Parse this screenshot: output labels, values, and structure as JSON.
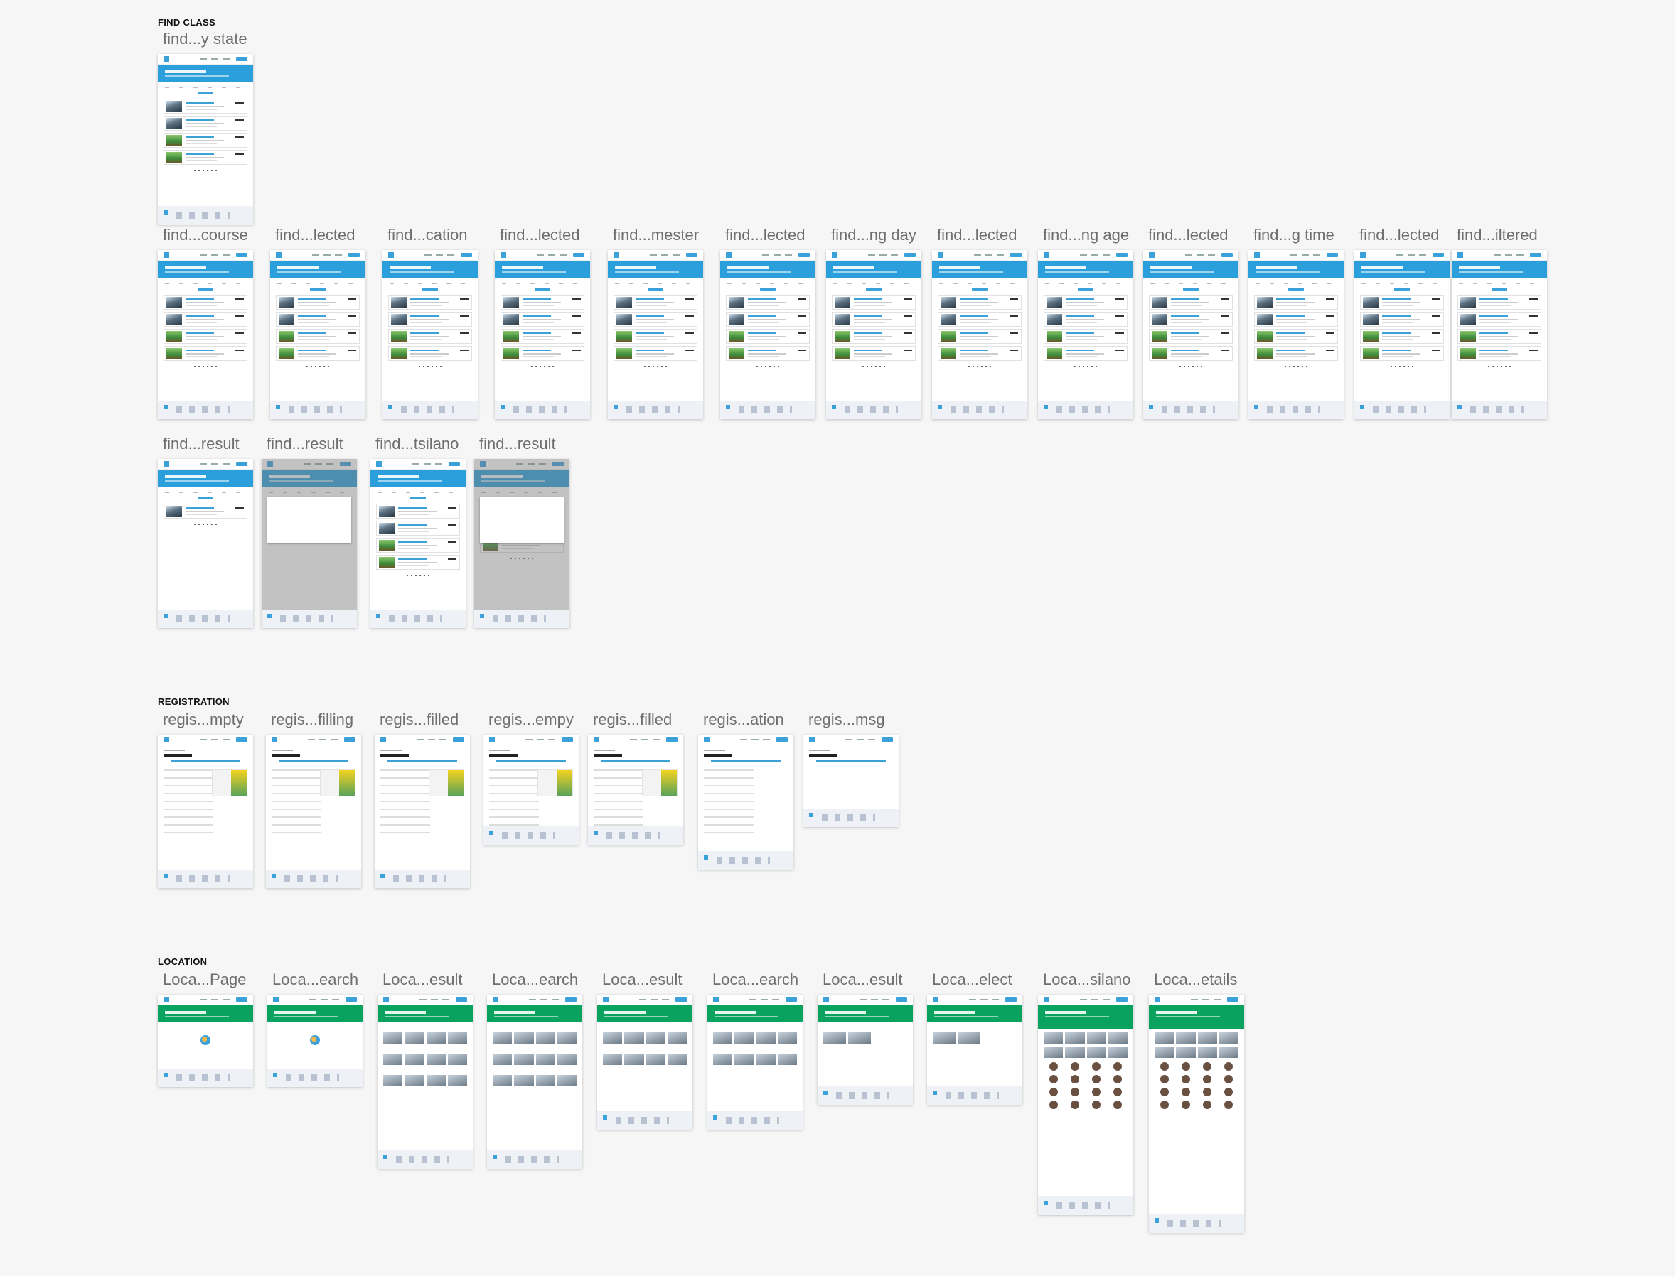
{
  "sections": [
    {
      "title": "FIND CLASS",
      "rows": [
        {
          "boards": [
            {
              "label": "find...y state",
              "type": "course-list",
              "cards": 4
            }
          ]
        },
        {
          "boards": [
            {
              "label": "find...course",
              "type": "course-list",
              "cards": 4
            },
            {
              "label": "find...lected",
              "type": "course-list",
              "cards": 4
            },
            {
              "label": "find...cation",
              "type": "course-list",
              "cards": 4
            },
            {
              "label": "find...lected",
              "type": "course-list",
              "cards": 4
            },
            {
              "label": "find...mester",
              "type": "course-list",
              "cards": 4
            },
            {
              "label": "find...lected",
              "type": "course-list",
              "cards": 4
            },
            {
              "label": "find...ng day",
              "type": "course-list",
              "cards": 4
            },
            {
              "label": "find...lected",
              "type": "course-list",
              "cards": 4
            },
            {
              "label": "find...ng age",
              "type": "course-list",
              "cards": 4
            },
            {
              "label": "find...lected",
              "type": "course-list",
              "cards": 4
            },
            {
              "label": "find...g time",
              "type": "course-list",
              "cards": 4
            },
            {
              "label": "find...lected",
              "type": "course-list",
              "cards": 4
            },
            {
              "label": "find...iltered",
              "type": "course-list",
              "cards": 4
            }
          ]
        },
        {
          "boards": [
            {
              "label": "find...result",
              "type": "course-list",
              "cards": 1
            },
            {
              "label": "find...result",
              "type": "course-modal",
              "cards": 0
            },
            {
              "label": "find...tsilano",
              "type": "course-list",
              "cards": 4
            },
            {
              "label": "find...result",
              "type": "course-modal",
              "cards": 3
            }
          ]
        }
      ]
    },
    {
      "title": "REGISTRATION",
      "rows": [
        {
          "boards": [
            {
              "label": "regis...mpty",
              "type": "registration"
            },
            {
              "label": "regis...filling",
              "type": "registration"
            },
            {
              "label": "regis...filled",
              "type": "registration"
            },
            {
              "label": "regis...empy",
              "type": "registration-short"
            },
            {
              "label": "regis...filled",
              "type": "registration-short"
            },
            {
              "label": "regis...ation",
              "type": "registration-mid"
            },
            {
              "label": "regis...msg",
              "type": "registration-done"
            }
          ]
        }
      ]
    },
    {
      "title": "LOCATION",
      "rows": [
        {
          "boards": [
            {
              "label": "Loca...Page",
              "type": "location-empty"
            },
            {
              "label": "Loca...earch",
              "type": "location-empty"
            },
            {
              "label": "Loca...esult",
              "type": "location-results"
            },
            {
              "label": "Loca...earch",
              "type": "location-results"
            },
            {
              "label": "Loca...esult",
              "type": "location-results-short"
            },
            {
              "label": "Loca...earch",
              "type": "location-results-short"
            },
            {
              "label": "Loca...esult",
              "type": "location-few"
            },
            {
              "label": "Loca...elect",
              "type": "location-few"
            },
            {
              "label": "Loca...silano",
              "type": "location-detail"
            },
            {
              "label": "Loca...etails",
              "type": "location-detail"
            }
          ]
        }
      ]
    }
  ],
  "colors": {
    "find_accent": "#2a9fdb",
    "location_accent": "#09a25e",
    "canvas": "#f6f6f6"
  }
}
